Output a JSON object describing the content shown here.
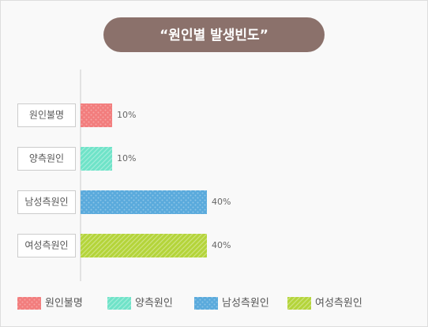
{
  "chart_data": {
    "type": "hbar",
    "title": "“원인별 발생빈도”",
    "categories": [
      "원인불명",
      "양측원인",
      "남성측원인",
      "여성측원인"
    ],
    "values": [
      10,
      10,
      40,
      40
    ],
    "value_labels": [
      "10%",
      "10%",
      "40%",
      "40%"
    ],
    "colors": [
      "#f27d7d",
      "#6fe3c8",
      "#5aaadc",
      "#b4d43a"
    ],
    "legend": true
  }
}
